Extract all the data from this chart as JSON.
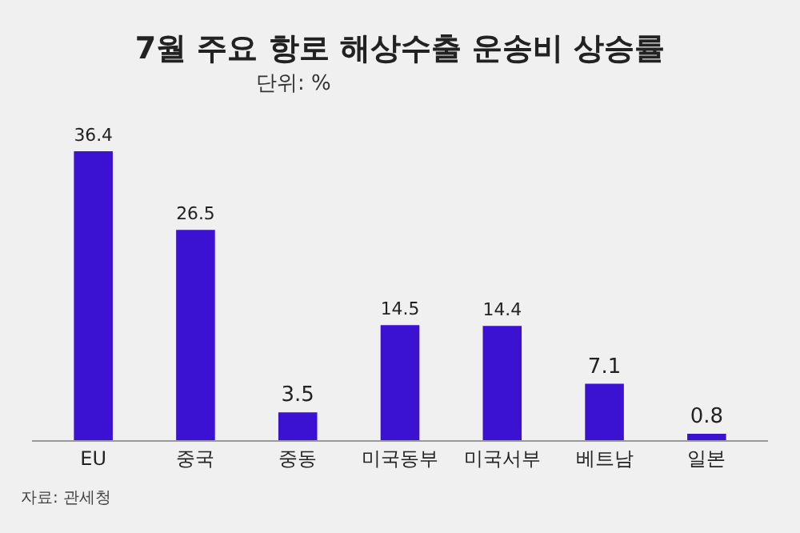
{
  "chart_data": {
    "type": "bar",
    "title": "7월 주요 항로 해상수출 운송비 상승률",
    "subtitle": "단위: %",
    "categories": [
      "EU",
      "중국",
      "중동",
      "미국동부",
      "미국서부",
      "베트남",
      "일본"
    ],
    "values": [
      36.4,
      26.5,
      3.5,
      14.5,
      14.4,
      7.1,
      0.8
    ],
    "color": "#3b12d1",
    "data_labels": true,
    "legend": false,
    "grid": false,
    "annotations": [
      "자료: 관세청"
    ]
  }
}
